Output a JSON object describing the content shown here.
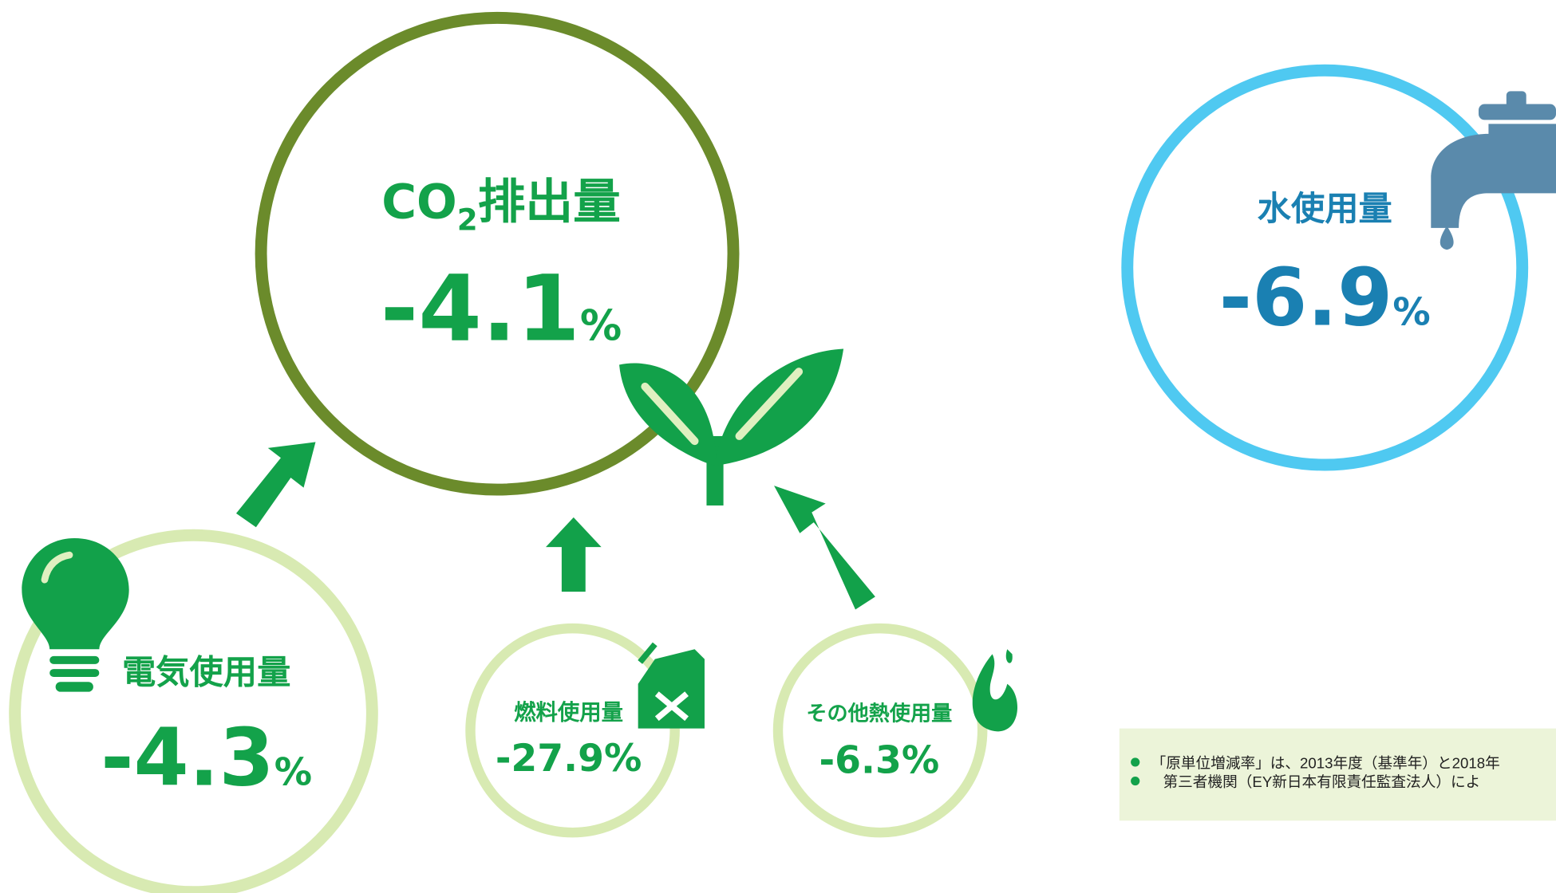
{
  "co2": {
    "label": "CO",
    "label_sub": "2",
    "label_rest": "排出量",
    "value": "-4.1",
    "unit": "%"
  },
  "water": {
    "label": "水使用量",
    "value": "-6.9",
    "unit": "%"
  },
  "electricity": {
    "label": "電気使用量",
    "value": "-4.3",
    "unit": "%"
  },
  "fuel": {
    "label": "燃料使用量",
    "value": "-27.9",
    "unit": "%"
  },
  "other_heat": {
    "label": "その他熱使用量",
    "value": "-6.3",
    "unit": "%"
  },
  "notes": [
    "「原単位増減率」は、2013年度（基準年）と2018年",
    "第三者機関（EY新日本有限責任監査法人）によ"
  ]
}
